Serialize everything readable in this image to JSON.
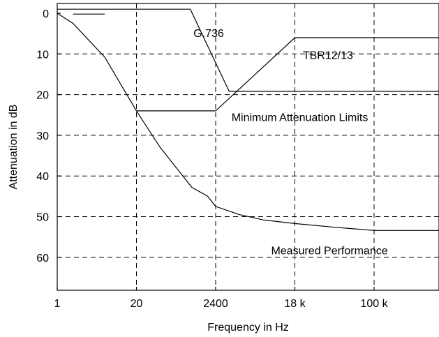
{
  "chart_data": {
    "type": "line",
    "xlabel": "Frequency in Hz",
    "ylabel": "Attenuation in dB",
    "x_ticks": [
      "1",
      "20",
      "2400",
      "18 k",
      "100 k"
    ],
    "y_ticks": [
      0,
      10,
      20,
      30,
      40,
      50,
      60
    ],
    "x_tick_index": [
      0,
      1,
      2,
      3,
      4
    ],
    "x_range_index": [
      0,
      4.85
    ],
    "ylim": [
      0,
      68
    ],
    "y_inverted": true,
    "grid": true,
    "series": [
      {
        "name": "G.736",
        "points": [
          [
            0,
            -1
          ],
          [
            0.2,
            -1
          ],
          [
            1.68,
            -1
          ],
          [
            2.17,
            19.2
          ],
          [
            4.85,
            19.2
          ]
        ]
      },
      {
        "name": "TBR12/13",
        "points": [
          [
            0.2,
            0.2
          ],
          [
            0.6,
            0.2
          ]
        ]
      },
      {
        "name": "Minimum Attenuation Limits",
        "points": [
          [
            1,
            24
          ],
          [
            2,
            24
          ],
          [
            3,
            6
          ],
          [
            4.85,
            6
          ]
        ]
      },
      {
        "name": "Measured Performance",
        "points": [
          [
            0,
            0
          ],
          [
            0.2,
            2.5
          ],
          [
            0.6,
            10.8
          ],
          [
            1,
            24
          ],
          [
            1.3,
            33
          ],
          [
            1.7,
            42.8
          ],
          [
            1.9,
            45
          ],
          [
            2,
            47.5
          ],
          [
            2.3,
            49.5
          ],
          [
            2.6,
            50.8
          ],
          [
            3,
            51.7
          ],
          [
            3.5,
            52.6
          ],
          [
            4,
            53.4
          ],
          [
            4.85,
            53.4
          ]
        ]
      }
    ],
    "annotations": [
      {
        "text": "G.736",
        "x": 1.72,
        "y": 5.8
      },
      {
        "text": "TBR12/13",
        "x": 3.1,
        "y": 11.2
      },
      {
        "text": "Minimum Attenuation Limits",
        "x": 2.2,
        "y": 26.5
      },
      {
        "text": "Measured Performance",
        "x": 2.7,
        "y": 59.3
      }
    ]
  }
}
